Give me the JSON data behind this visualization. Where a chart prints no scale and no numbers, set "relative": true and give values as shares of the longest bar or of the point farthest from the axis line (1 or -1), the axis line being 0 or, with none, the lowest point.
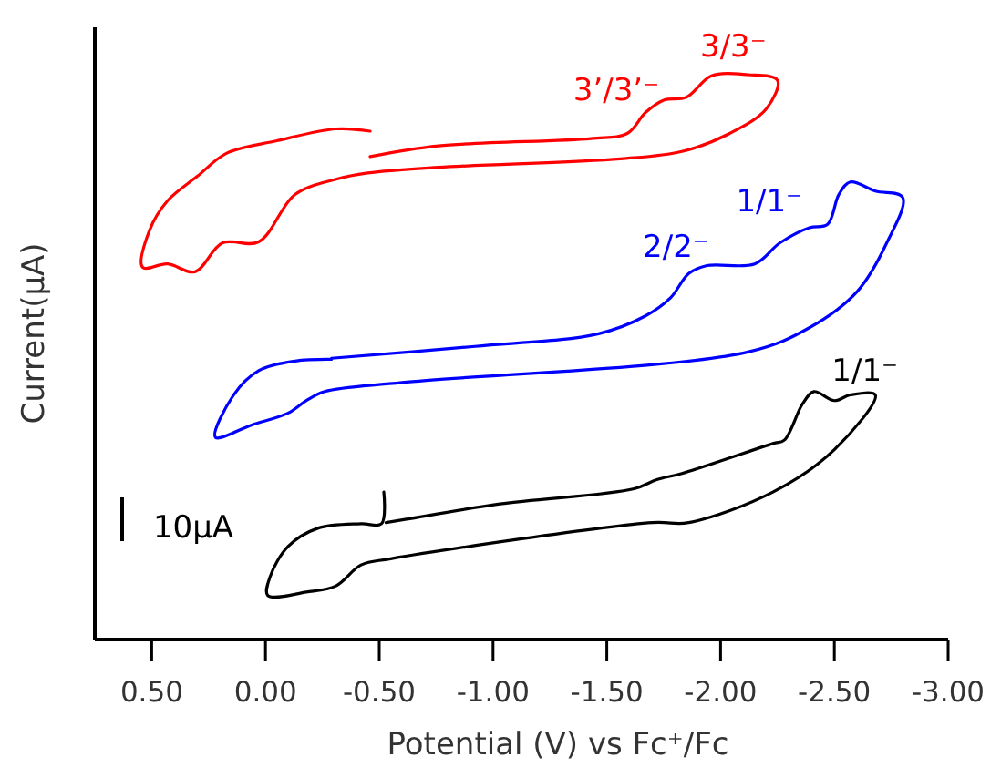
{
  "chart_data": {
    "type": "line",
    "relative": true,
    "xlabel": "Potential (V) vs Fc⁺/Fc",
    "ylabel": "Current(μA)",
    "xlim": [
      0.75,
      -3.0
    ],
    "xticks": [
      {
        "value": 0.5,
        "label": "0.50"
      },
      {
        "value": 0,
        "label": "0.00"
      },
      {
        "value": -0.5,
        "label": "-0.50"
      },
      {
        "value": -1,
        "label": "-1.00"
      },
      {
        "value": -1.5,
        "label": "-1.50"
      },
      {
        "value": -2,
        "label": "-2.00"
      },
      {
        "value": -2.5,
        "label": "-2.50"
      },
      {
        "value": -3,
        "label": "-3.00"
      }
    ],
    "grid": false,
    "marker": "none",
    "line_style": "solid",
    "series": [
      {
        "color": "#ff0000",
        "x": [
          -0.46,
          -0.31,
          -0.05,
          0.17,
          0.3,
          0.43,
          0.51,
          0.54,
          0.43,
          0.31,
          0.19,
          0.03,
          -0.13,
          -0.31,
          -0.45,
          -0.76,
          -1.56,
          -1.83,
          -2.04,
          -2.2,
          -2.25,
          -2.12,
          -1.96,
          -1.85,
          -1.75,
          -1.67,
          -1.59,
          -1.43,
          -0.76,
          -0.46
        ],
        "values": [
          0.9,
          0.904,
          0.883,
          0.861,
          0.82,
          0.777,
          0.724,
          0.659,
          0.665,
          0.651,
          0.702,
          0.704,
          0.788,
          0.815,
          0.826,
          0.836,
          0.851,
          0.864,
          0.896,
          0.939,
          0.99,
          1.0,
          0.998,
          0.96,
          0.955,
          0.933,
          0.896,
          0.887,
          0.874,
          0.855
        ]
      },
      {
        "color": "#0000ff",
        "x": [
          -0.29,
          -0.13,
          0.03,
          0.14,
          0.22,
          0.06,
          -0.1,
          -0.18,
          -0.26,
          -0.6,
          -2.12,
          -2.39,
          -2.6,
          -2.73,
          -2.8,
          -2.68,
          -2.57,
          -2.52,
          -2.47,
          -2.39,
          -2.26,
          -2.15,
          -1.94,
          -1.86,
          -1.78,
          -1.67,
          -1.46,
          -0.92,
          -0.29
        ],
        "values": [
          0.496,
          0.493,
          0.476,
          0.433,
          0.358,
          0.38,
          0.401,
          0.423,
          0.439,
          0.455,
          0.509,
          0.552,
          0.616,
          0.702,
          0.783,
          0.794,
          0.81,
          0.788,
          0.735,
          0.729,
          0.702,
          0.665,
          0.662,
          0.648,
          0.605,
          0.573,
          0.541,
          0.519,
          0.498
        ]
      },
      {
        "color": "#000000",
        "x": [
          -0.52,
          -0.51,
          -0.42,
          -0.23,
          -0.1,
          -0.02,
          -0.01,
          -0.18,
          -0.31,
          -0.42,
          -0.55,
          -1.7,
          -1.86,
          -2.23,
          -2.5,
          -2.68,
          -2.57,
          -2.5,
          -2.41,
          -2.36,
          -2.28,
          -2.23,
          -1.83,
          -1.72,
          -1.62,
          -1.03,
          -0.62,
          -0.53
        ],
        "values": [
          0.261,
          0.205,
          0.205,
          0.197,
          0.165,
          0.111,
          0.078,
          0.084,
          0.095,
          0.132,
          0.143,
          0.207,
          0.207,
          0.261,
          0.336,
          0.433,
          0.433,
          0.423,
          0.439,
          0.417,
          0.353,
          0.347,
          0.294,
          0.283,
          0.267,
          0.24,
          0.213,
          0.207
        ]
      }
    ],
    "annotations": [
      {
        "text": "3/3⁻",
        "x": -2.12,
        "y": 1.0
      },
      {
        "text": "3’/3’⁻",
        "x": -1.75,
        "y": 0.955
      },
      {
        "text": "1/1⁻",
        "x": -2.39,
        "y": 0.729
      },
      {
        "text": "2/2⁻",
        "x": -1.94,
        "y": 0.662
      },
      {
        "text": "1/1⁻",
        "x": -2.57,
        "y": 0.433
      },
      "10μA"
    ]
  }
}
